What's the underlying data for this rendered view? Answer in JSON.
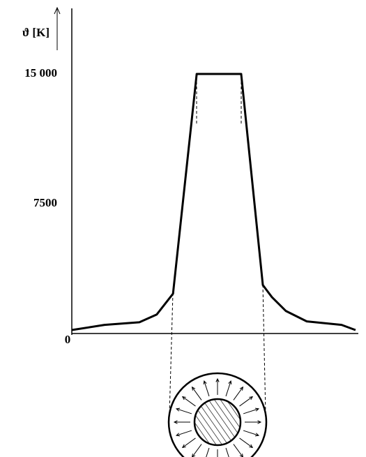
{
  "chart_data": {
    "type": "line",
    "y_label": "ϑ [K]",
    "x": [
      0,
      11.5,
      23.7,
      29.8,
      35.5,
      43.8,
      59.4,
      67,
      70.2,
      75.1,
      82.4,
      94.6,
      99.5
    ],
    "values": [
      200,
      500,
      650,
      1100,
      2300,
      15000,
      15000,
      2800,
      2100,
      1300,
      700,
      500,
      200
    ],
    "color": "#000000",
    "xlim": [
      0,
      100
    ],
    "ylim": [
      0,
      15000
    ],
    "yticks": [
      0,
      7500,
      {
        "value": 15000,
        "label": "15 000"
      }
    ],
    "grid": false
  }
}
